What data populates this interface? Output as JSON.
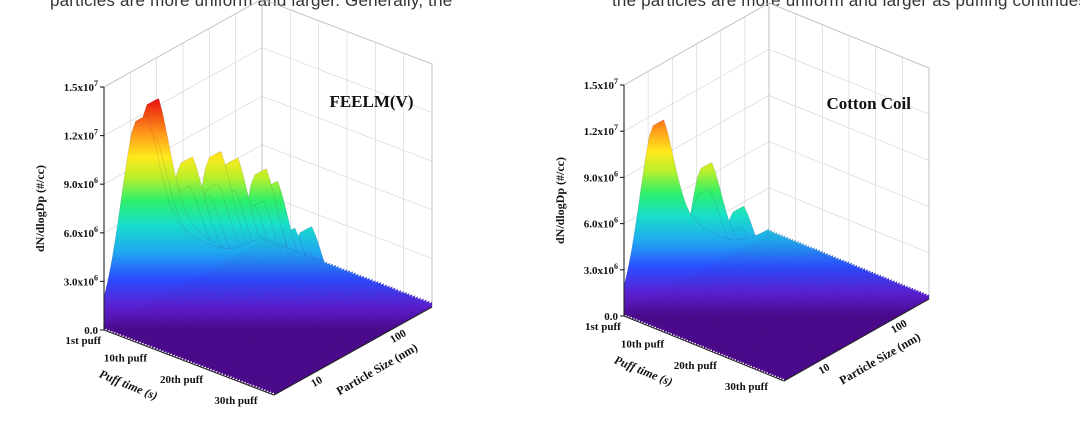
{
  "caption": {
    "left": "particles are more uniform and larger. Generally, the",
    "right": "the particles are more uniform and larger as puffing continues"
  },
  "chart_data": [
    {
      "type": "area",
      "title": "FEELM(V)",
      "ylabel": "dN/dlogDp (#/cc)",
      "xlabel": "Puff time (s)",
      "zlabel": "Particle Size (nm)",
      "ylim": [
        0,
        15000000
      ],
      "y_ticks": [
        {
          "base": "0.0",
          "exp": ""
        },
        {
          "base": "3.0x10",
          "exp": "6"
        },
        {
          "base": "6.0x10",
          "exp": "6"
        },
        {
          "base": "9.0x10",
          "exp": "6"
        },
        {
          "base": "1.2x10",
          "exp": "7"
        },
        {
          "base": "1.5x10",
          "exp": "7"
        }
      ],
      "puff_ticks": [
        "1st puff",
        "10th puff",
        "20th puff",
        "30th puff"
      ],
      "size_ticks": [
        "10",
        "100"
      ],
      "peaks": [
        {
          "puff": 1,
          "value": 11500000
        },
        {
          "puff": 3,
          "value": 12800000
        },
        {
          "puff": 6,
          "value": 7500000
        },
        {
          "puff": 9,
          "value": 10000000
        },
        {
          "puff": 12,
          "value": 8000000
        },
        {
          "puff": 14,
          "value": 11000000
        },
        {
          "puff": 17,
          "value": 11000000
        },
        {
          "puff": 20,
          "value": 8500000
        },
        {
          "puff": 22,
          "value": 11000000
        },
        {
          "puff": 24,
          "value": 10500000
        },
        {
          "puff": 27,
          "value": 8000000
        },
        {
          "puff": 30,
          "value": 8500000
        }
      ]
    },
    {
      "type": "area",
      "title": "Cotton Coil",
      "ylabel": "dN/dlogDp (#/cc)",
      "xlabel": "Puff time (s)",
      "zlabel": "Particle Size (nm)",
      "ylim": [
        0,
        15000000
      ],
      "y_ticks": [
        {
          "base": "0.0",
          "exp": ""
        },
        {
          "base": "3.0x10",
          "exp": "6"
        },
        {
          "base": "6.0x10",
          "exp": "6"
        },
        {
          "base": "9.0x10",
          "exp": "6"
        },
        {
          "base": "1.2x10",
          "exp": "7"
        },
        {
          "base": "1.5x10",
          "exp": "7"
        }
      ],
      "puff_ticks": [
        "1st puff",
        "10th puff",
        "20th puff",
        "30th puff"
      ],
      "size_ticks": [
        "10",
        "100"
      ],
      "peaks": [
        {
          "puff": 1,
          "value": 11000000
        },
        {
          "puff": 4,
          "value": 5500000
        },
        {
          "puff": 7,
          "value": 5500000
        },
        {
          "puff": 10,
          "value": 9500000
        },
        {
          "puff": 13,
          "value": 4000000
        },
        {
          "puff": 16,
          "value": 7500000
        },
        {
          "puff": 19,
          "value": 2500000
        },
        {
          "puff": 23,
          "value": 5000000
        },
        {
          "puff": 26,
          "value": 2000000
        },
        {
          "puff": 29,
          "value": 5500000
        }
      ]
    }
  ]
}
